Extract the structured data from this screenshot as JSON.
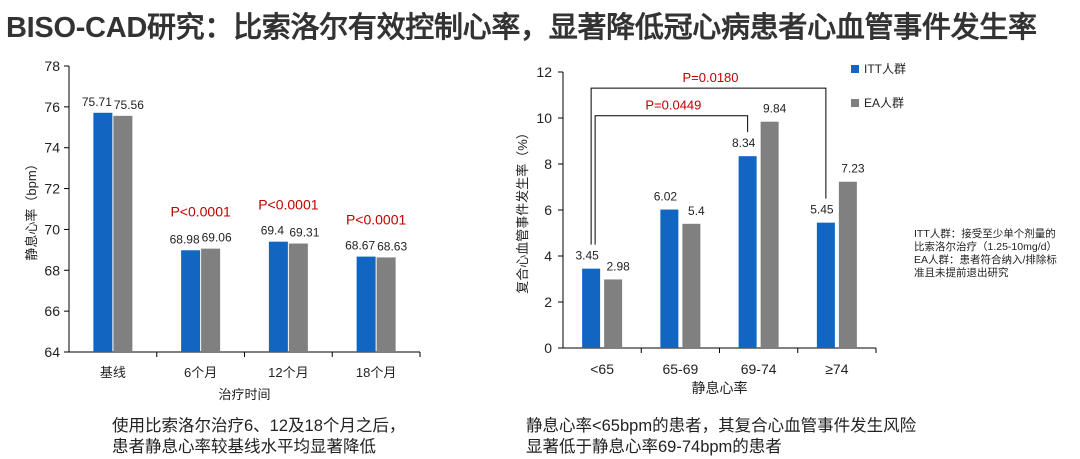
{
  "title": "BISO-CAD研究：比索洛尔有效控制心率，显著降低冠心病患者心血管事件发生率",
  "colors": {
    "itt": "#1166c2",
    "ea": "#808080",
    "pvalue": "#c00000",
    "axis": "#000000"
  },
  "chart_data": [
    {
      "type": "bar",
      "categories": [
        "基线",
        "6个月",
        "12个月",
        "18个月"
      ],
      "series": [
        {
          "values": [
            75.71,
            68.98,
            69.4,
            68.67
          ],
          "labels": [
            "75.71",
            "68.98",
            "69.4",
            "68.67"
          ]
        },
        {
          "values": [
            75.56,
            69.06,
            69.31,
            68.63
          ],
          "labels": [
            "75.56",
            "69.06",
            "69.31",
            "68.63"
          ]
        }
      ],
      "xlabel": "治疗时间",
      "ylabel": "静息心率（bpm）",
      "ylim": [
        64,
        78
      ],
      "yticks": [
        "64",
        "66",
        "68",
        "70",
        "72",
        "74",
        "76",
        "78"
      ],
      "annotations": [
        "P<0.0001",
        "P<0.0001",
        "P<0.0001"
      ]
    },
    {
      "type": "bar",
      "categories": [
        "<65",
        "65-69",
        "69-74",
        "≥74"
      ],
      "series": [
        {
          "name": "ITT人群",
          "values": [
            3.45,
            6.02,
            8.34,
            5.45
          ],
          "labels": [
            "3.45",
            "6.02",
            "8.34",
            "5.45"
          ]
        },
        {
          "name": "EA人群",
          "values": [
            2.98,
            5.4,
            9.84,
            7.23
          ],
          "labels": [
            "2.98",
            "5.4",
            "9.84",
            "7.23"
          ]
        }
      ],
      "xlabel": "静息心率",
      "ylabel": "复合心血管事件发生率（%）",
      "ylim": [
        0,
        12
      ],
      "yticks": [
        "0",
        "2",
        "4",
        "6",
        "8",
        "10",
        "12"
      ],
      "legend": "right",
      "comparisons": [
        {
          "label": "P=0.0180",
          "from": "<65",
          "to": "≥74"
        },
        {
          "label": "P=0.0449",
          "from": "<65",
          "to": "69-74"
        }
      ]
    }
  ],
  "captions": {
    "left": [
      "使用比索洛尔治疗6、12及18个月之后，",
      "患者静息心率较基线水平均显著降低"
    ],
    "right": [
      "静息心率<65bpm的患者，其复合心血管事件发生风险",
      "显著低于静息心率69-74bpm的患者"
    ]
  },
  "note": [
    "ITT人群：接受至少单个剂量的",
    "比索洛尔治疗（1.25-10mg/d）",
    "EA人群：患者符合纳入/排除标",
    "准且未提前退出研究"
  ]
}
